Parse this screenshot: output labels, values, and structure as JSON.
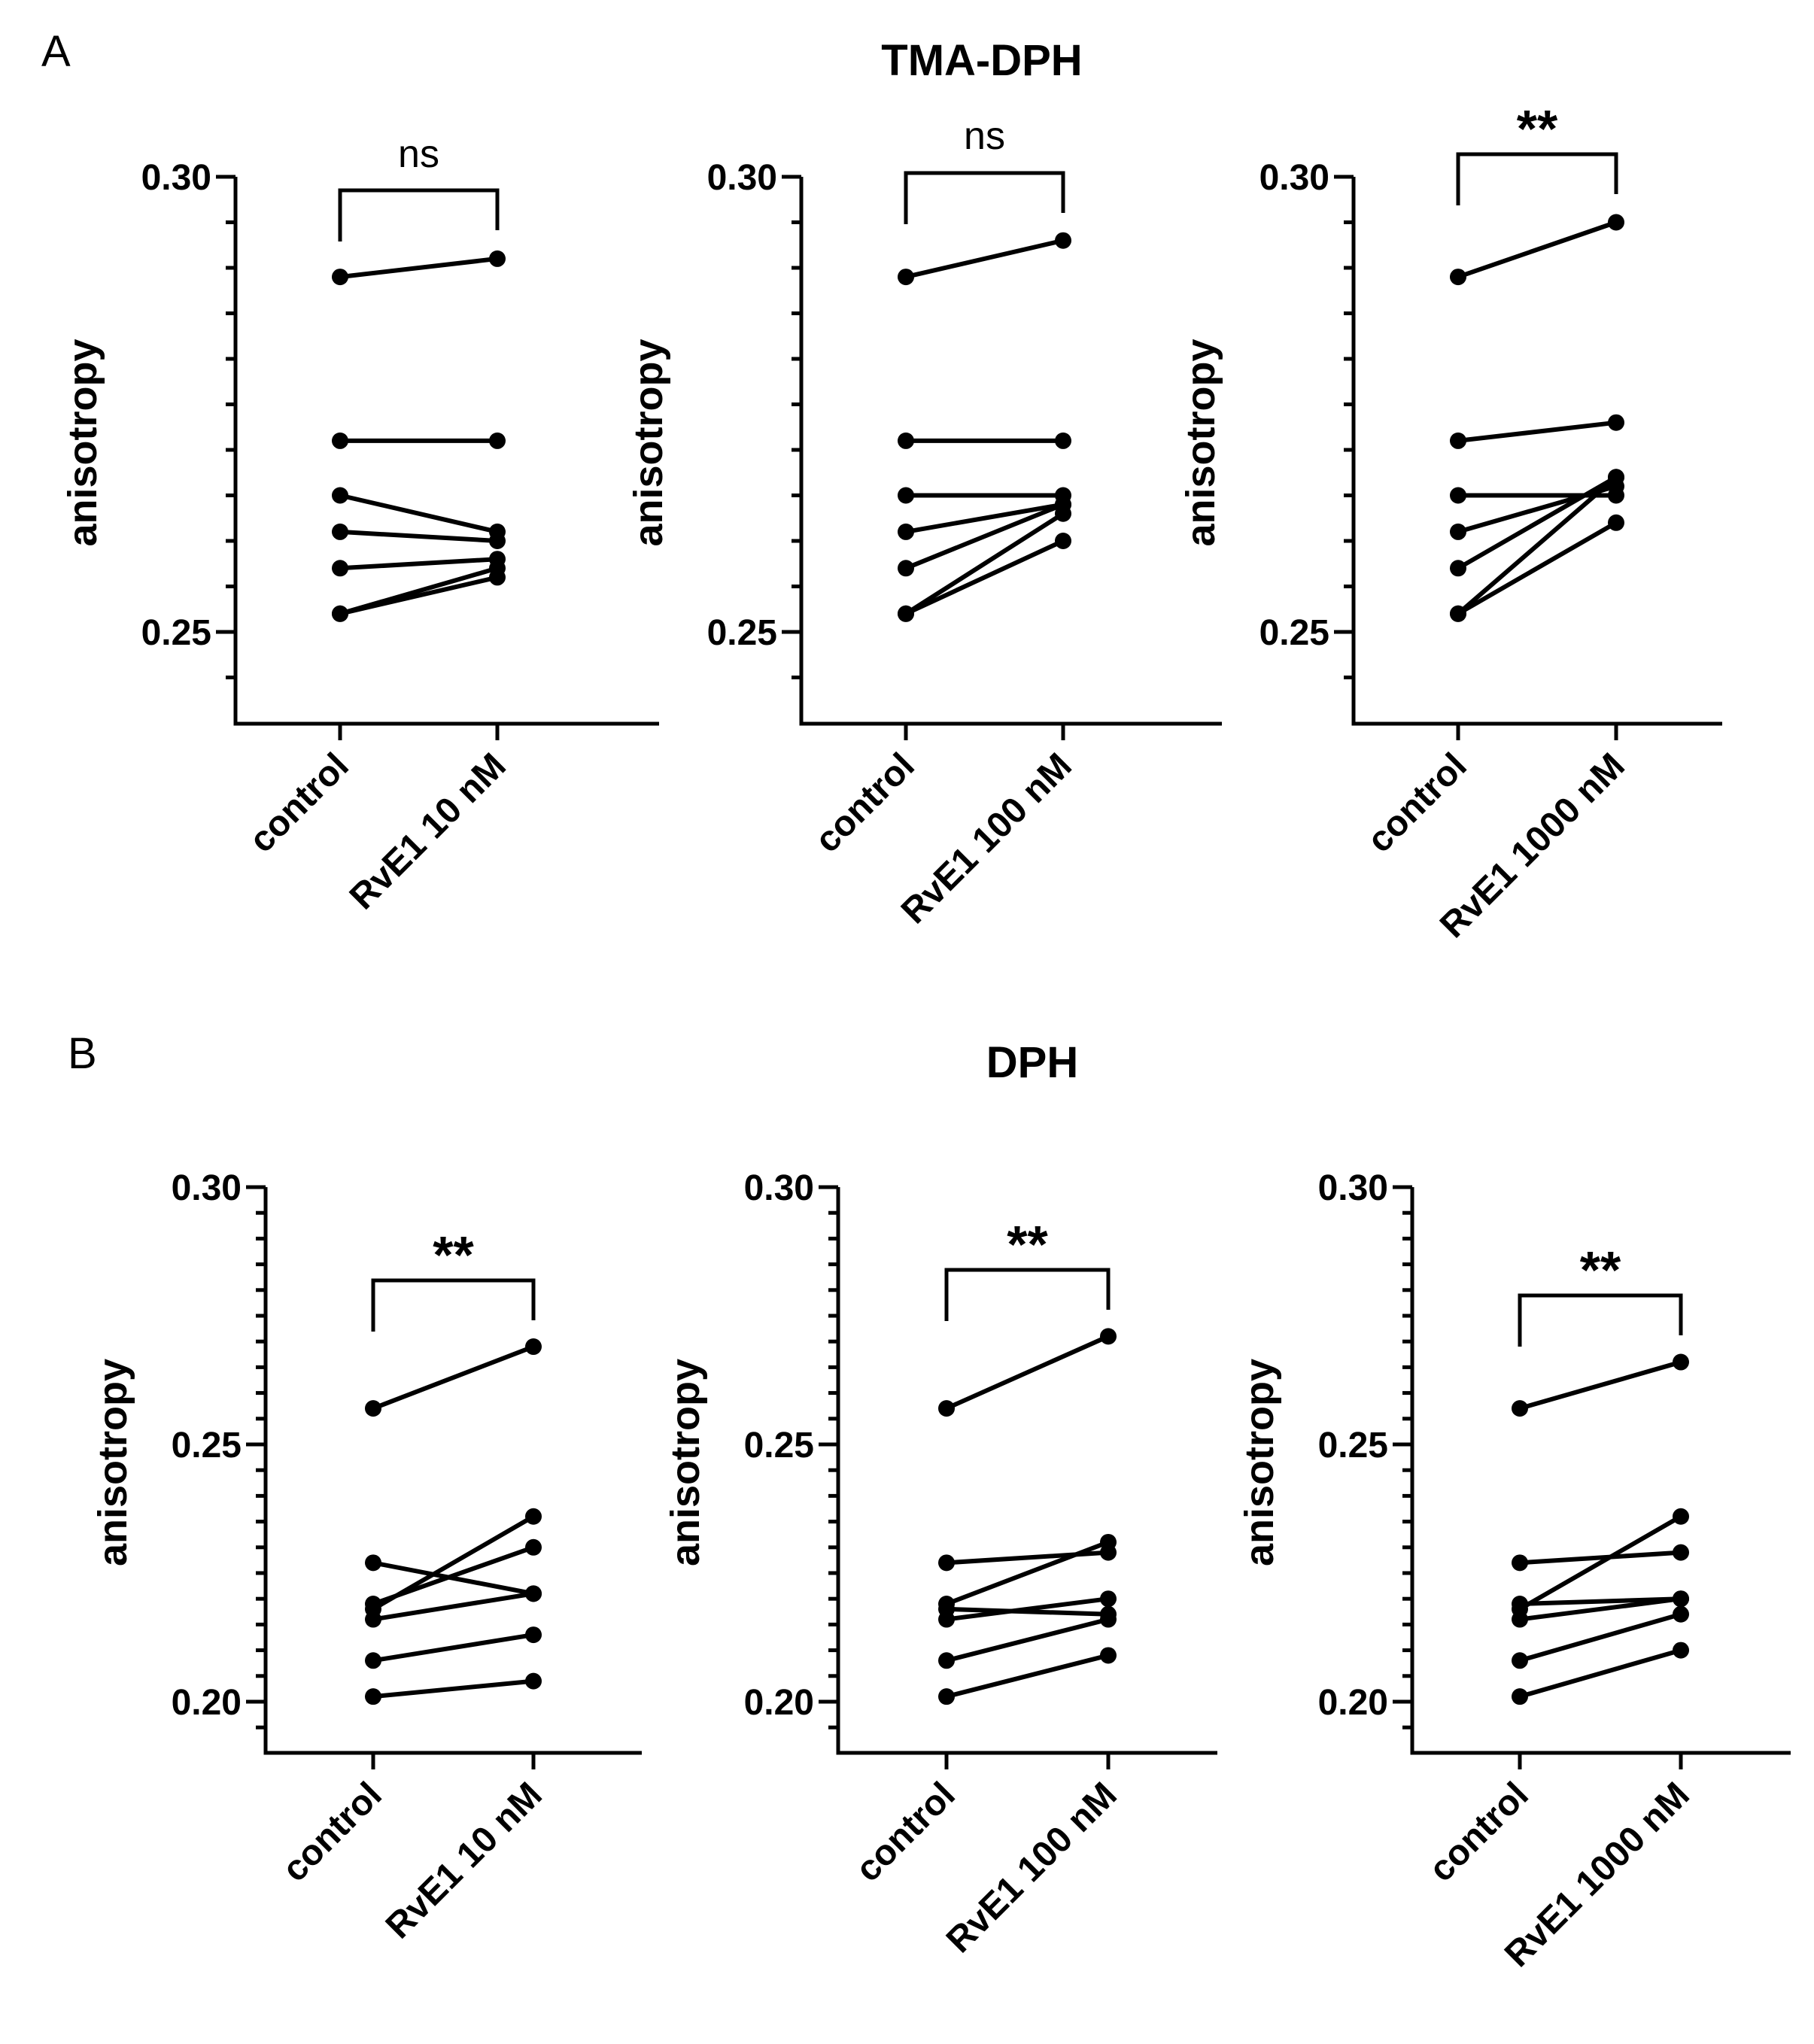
{
  "panels": [
    {
      "letter": "A",
      "title": "TMA-DPH"
    },
    {
      "letter": "B",
      "title": "DPH"
    }
  ],
  "chart_data": [
    {
      "type": "line",
      "panel": "A",
      "id": "a1",
      "categories": [
        "control",
        "RvE1 10 nM"
      ],
      "ylabel": "anisotropy",
      "ylim": [
        0.24,
        0.3
      ],
      "yticks": [
        0.25,
        0.3
      ],
      "minor_step": 0.005,
      "significance": "ns",
      "series": [
        [
          0.289,
          0.291
        ],
        [
          0.271,
          0.271
        ],
        [
          0.265,
          0.261
        ],
        [
          0.261,
          0.26
        ],
        [
          0.257,
          0.258
        ],
        [
          0.252,
          0.257
        ],
        [
          0.252,
          0.256
        ]
      ]
    },
    {
      "type": "line",
      "panel": "A",
      "id": "a2",
      "categories": [
        "control",
        "RvE1 100 nM"
      ],
      "ylabel": "anisotropy",
      "ylim": [
        0.24,
        0.3
      ],
      "yticks": [
        0.25,
        0.3
      ],
      "minor_step": 0.005,
      "significance": "ns",
      "series": [
        [
          0.289,
          0.293
        ],
        [
          0.271,
          0.271
        ],
        [
          0.265,
          0.265
        ],
        [
          0.261,
          0.264
        ],
        [
          0.257,
          0.264
        ],
        [
          0.252,
          0.263
        ],
        [
          0.252,
          0.26
        ]
      ]
    },
    {
      "type": "line",
      "panel": "A",
      "id": "a3",
      "categories": [
        "control",
        "RvE1 1000 nM"
      ],
      "ylabel": "anisotropy",
      "ylim": [
        0.24,
        0.3
      ],
      "yticks": [
        0.25,
        0.3
      ],
      "minor_step": 0.005,
      "significance": "**",
      "series": [
        [
          0.289,
          0.295
        ],
        [
          0.271,
          0.273
        ],
        [
          0.265,
          0.265
        ],
        [
          0.261,
          0.266
        ],
        [
          0.257,
          0.267
        ],
        [
          0.252,
          0.267
        ],
        [
          0.252,
          0.262
        ]
      ]
    },
    {
      "type": "line",
      "panel": "B",
      "id": "b1",
      "categories": [
        "control",
        "RvE1 10 nM"
      ],
      "ylabel": "anisotropy",
      "ylim": [
        0.19,
        0.3
      ],
      "yticks": [
        0.2,
        0.25,
        0.3
      ],
      "minor_step": 0.005,
      "significance": "**",
      "series": [
        [
          0.257,
          0.269
        ],
        [
          0.227,
          0.221
        ],
        [
          0.219,
          0.23
        ],
        [
          0.218,
          0.236
        ],
        [
          0.216,
          0.221
        ],
        [
          0.208,
          0.213
        ],
        [
          0.201,
          0.204
        ]
      ]
    },
    {
      "type": "line",
      "panel": "B",
      "id": "b2",
      "categories": [
        "control",
        "RvE1 100 nM"
      ],
      "ylabel": "anisotropy",
      "ylim": [
        0.19,
        0.3
      ],
      "yticks": [
        0.2,
        0.25,
        0.3
      ],
      "minor_step": 0.005,
      "significance": "**",
      "series": [
        [
          0.257,
          0.271
        ],
        [
          0.227,
          0.229
        ],
        [
          0.219,
          0.231
        ],
        [
          0.218,
          0.217
        ],
        [
          0.216,
          0.22
        ],
        [
          0.208,
          0.216
        ],
        [
          0.201,
          0.209
        ]
      ]
    },
    {
      "type": "line",
      "panel": "B",
      "id": "b3",
      "categories": [
        "control",
        "RvE1 1000 nM"
      ],
      "ylabel": "anisotropy",
      "ylim": [
        0.19,
        0.3
      ],
      "yticks": [
        0.2,
        0.25,
        0.3
      ],
      "minor_step": 0.005,
      "significance": "**",
      "series": [
        [
          0.257,
          0.266
        ],
        [
          0.227,
          0.229
        ],
        [
          0.219,
          0.22
        ],
        [
          0.218,
          0.236
        ],
        [
          0.216,
          0.22
        ],
        [
          0.208,
          0.217
        ],
        [
          0.201,
          0.21
        ]
      ]
    }
  ]
}
